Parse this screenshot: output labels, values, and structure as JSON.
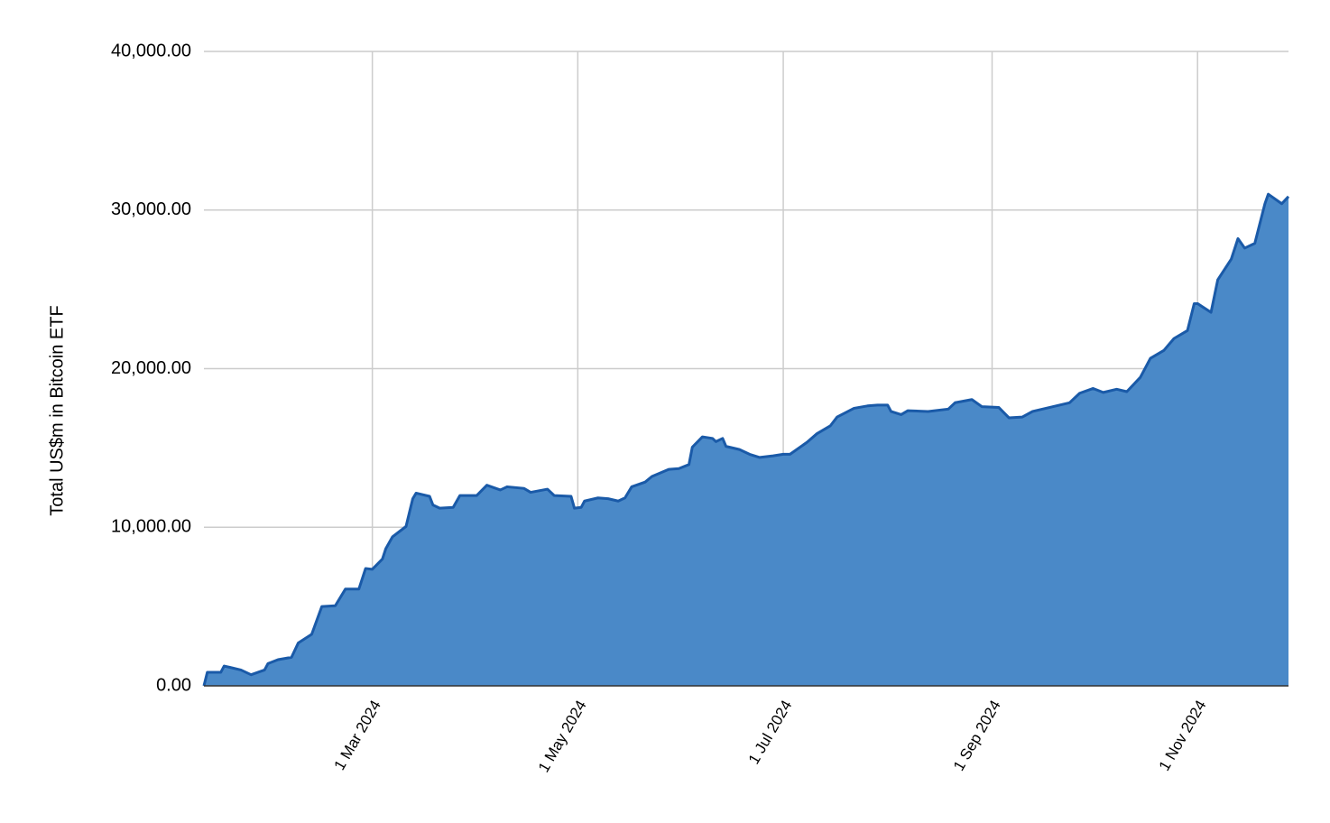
{
  "chart_data": {
    "type": "area",
    "y_label": "Total US$m in Bitcoin ETF",
    "x": [
      "2024-01-11",
      "2024-01-12",
      "2024-01-16",
      "2024-01-17",
      "2024-01-22",
      "2024-01-25",
      "2024-01-29",
      "2024-01-30",
      "2024-02-02",
      "2024-02-06",
      "2024-02-08",
      "2024-02-12",
      "2024-02-15",
      "2024-02-19",
      "2024-02-22",
      "2024-02-26",
      "2024-02-28",
      "2024-03-01",
      "2024-03-04",
      "2024-03-05",
      "2024-03-07",
      "2024-03-11",
      "2024-03-13",
      "2024-03-14",
      "2024-03-18",
      "2024-03-19",
      "2024-03-21",
      "2024-03-25",
      "2024-03-27",
      "2024-04-01",
      "2024-04-04",
      "2024-04-08",
      "2024-04-10",
      "2024-04-15",
      "2024-04-17",
      "2024-04-22",
      "2024-04-24",
      "2024-04-29",
      "2024-04-30",
      "2024-05-02",
      "2024-05-03",
      "2024-05-07",
      "2024-05-10",
      "2024-05-13",
      "2024-05-15",
      "2024-05-17",
      "2024-05-21",
      "2024-05-23",
      "2024-05-28",
      "2024-05-31",
      "2024-06-03",
      "2024-06-04",
      "2024-06-07",
      "2024-06-10",
      "2024-06-11",
      "2024-06-13",
      "2024-06-14",
      "2024-06-18",
      "2024-06-21",
      "2024-06-24",
      "2024-06-28",
      "2024-07-01",
      "2024-07-03",
      "2024-07-08",
      "2024-07-11",
      "2024-07-15",
      "2024-07-17",
      "2024-07-22",
      "2024-07-26",
      "2024-07-29",
      "2024-08-01",
      "2024-08-02",
      "2024-08-05",
      "2024-08-07",
      "2024-08-13",
      "2024-08-19",
      "2024-08-21",
      "2024-08-26",
      "2024-08-29",
      "2024-09-03",
      "2024-09-06",
      "2024-09-10",
      "2024-09-13",
      "2024-09-19",
      "2024-09-24",
      "2024-09-27",
      "2024-10-01",
      "2024-10-04",
      "2024-10-08",
      "2024-10-11",
      "2024-10-15",
      "2024-10-18",
      "2024-10-22",
      "2024-10-25",
      "2024-10-29",
      "2024-10-31",
      "2024-11-01",
      "2024-11-05",
      "2024-11-07",
      "2024-11-11",
      "2024-11-13",
      "2024-11-15",
      "2024-11-18",
      "2024-11-21",
      "2024-11-22",
      "2024-11-26",
      "2024-11-28"
    ],
    "series": [
      {
        "name": "Total US$m in Bitcoin ETF",
        "color": "#4a89c8",
        "line_color": "#1a5aa8",
        "values": [
          0,
          850,
          850,
          1250,
          1000,
          700,
          1000,
          1400,
          1650,
          1800,
          2700,
          3250,
          5000,
          5050,
          6100,
          6100,
          7400,
          7350,
          8000,
          8650,
          9400,
          10050,
          11800,
          12150,
          11950,
          11400,
          11200,
          11250,
          12000,
          12000,
          12650,
          12350,
          12550,
          12450,
          12200,
          12400,
          12000,
          11950,
          11200,
          11250,
          11650,
          11850,
          11800,
          11650,
          11850,
          12550,
          12850,
          13200,
          13650,
          13700,
          13950,
          15050,
          15700,
          15600,
          15400,
          15600,
          15100,
          14900,
          14600,
          14400,
          14500,
          14600,
          14600,
          15350,
          15900,
          16400,
          16950,
          17500,
          17650,
          17700,
          17700,
          17300,
          17100,
          17350,
          17300,
          17450,
          17850,
          18050,
          17600,
          17550,
          16900,
          16950,
          17300,
          17600,
          17850,
          18450,
          18750,
          18500,
          18700,
          18550,
          19450,
          20650,
          21150,
          21900,
          22400,
          24100,
          24100,
          23550,
          25600,
          26900,
          28200,
          27600,
          27900,
          30400,
          31000,
          30400,
          30850
        ]
      }
    ],
    "xlim": [
      "2024-01-11",
      "2024-11-28"
    ],
    "xticks": [
      {
        "value": "2024-03-01",
        "label": "1 Mar 2024"
      },
      {
        "value": "2024-05-01",
        "label": "1 May 2024"
      },
      {
        "value": "2024-07-01",
        "label": "1 Jul 2024"
      },
      {
        "value": "2024-09-01",
        "label": "1 Sep 2024"
      },
      {
        "value": "2024-11-01",
        "label": "1 Nov 2024"
      }
    ],
    "ylim": [
      0,
      40000
    ],
    "yticks": [
      {
        "value": 0,
        "label": "0.00"
      },
      {
        "value": 10000,
        "label": "10,000.00"
      },
      {
        "value": 20000,
        "label": "20,000.00"
      },
      {
        "value": 30000,
        "label": "30,000.00"
      },
      {
        "value": 40000,
        "label": "40,000.00"
      }
    ],
    "grid": true
  }
}
